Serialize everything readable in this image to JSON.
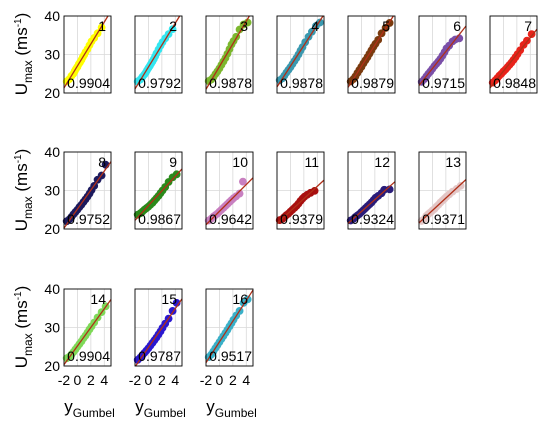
{
  "figure": {
    "ylabel": {
      "main": "U",
      "sub": "max",
      "unit_pre": "(ms",
      "unit_sup": "-1",
      "unit_post": ")"
    },
    "xlabel": {
      "main": "y",
      "sub": "Gumbel"
    },
    "y_ticks": [
      "20",
      "30",
      "40"
    ],
    "x_ticks": [
      "-2",
      "0",
      "2",
      "4"
    ]
  },
  "chart_data": {
    "type": "scatter",
    "xlim": [
      -2,
      5
    ],
    "ylim": [
      20,
      40
    ],
    "grid": true,
    "fit_line_color": "#b03018",
    "panels": [
      {
        "id": "1",
        "r2": "0.9904",
        "color": "#ffff00",
        "x": [
          -1.6,
          -1.2,
          -0.9,
          -0.6,
          -0.4,
          -0.2,
          0,
          0.2,
          0.4,
          0.6,
          0.8,
          1,
          1.2,
          1.5,
          1.8,
          2.1,
          2.5,
          3,
          3.6
        ],
        "y": [
          23,
          23.6,
          24.4,
          25,
          25.7,
          26.3,
          26.8,
          27.5,
          28,
          28.6,
          29.3,
          29.9,
          30.6,
          31.4,
          32.4,
          33.4,
          34.3,
          35.5,
          37
        ]
      },
      {
        "id": "2",
        "r2": "0.9792",
        "color": "#33e6f0",
        "x": [
          -1.6,
          -1.2,
          -0.9,
          -0.6,
          -0.4,
          -0.2,
          0,
          0.2,
          0.4,
          0.6,
          0.8,
          1,
          1.2,
          1.5,
          1.8,
          2.1,
          2.5,
          3,
          3.6
        ],
        "y": [
          23,
          23.5,
          24.2,
          24.8,
          25.3,
          25.9,
          26.5,
          27,
          27.6,
          28.2,
          28.8,
          29.5,
          30.3,
          31.3,
          32.3,
          33.2,
          34.2,
          35.3,
          36.6
        ]
      },
      {
        "id": "3",
        "r2": "0.9878",
        "color": "#7cb72e",
        "x": [
          -1.6,
          -1.2,
          -0.9,
          -0.6,
          -0.3,
          0,
          0.3,
          0.6,
          0.9,
          1.2,
          1.5,
          1.8,
          2.1,
          2.5,
          3,
          3.6,
          4.2
        ],
        "y": [
          23.1,
          23.5,
          24.1,
          24.9,
          25.6,
          26.4,
          27.3,
          28.2,
          29.1,
          30.2,
          31.4,
          32.6,
          33.5,
          34.6,
          36.5,
          37.8,
          38.3
        ]
      },
      {
        "id": "4",
        "r2": "0.9878",
        "color": "#3a99b0",
        "x": [
          -1.6,
          -1.2,
          -0.9,
          -0.6,
          -0.3,
          0,
          0.3,
          0.6,
          0.9,
          1.2,
          1.5,
          1.8,
          2.2,
          2.7,
          3.2,
          3.8,
          4.4
        ],
        "y": [
          23.3,
          23.8,
          24.5,
          25.3,
          26,
          26.7,
          27.5,
          28.3,
          29.1,
          30,
          31,
          31.9,
          33.2,
          34.6,
          35.9,
          37.4,
          38.3
        ]
      },
      {
        "id": "5",
        "r2": "0.9879",
        "color": "#7a3a0e",
        "x": [
          -1.6,
          -1.2,
          -0.9,
          -0.6,
          -0.3,
          0,
          0.3,
          0.6,
          0.9,
          1.2,
          1.5,
          1.8,
          2.1,
          2.5,
          3,
          3.6,
          4.2
        ],
        "y": [
          23,
          23.6,
          24.3,
          25.2,
          26,
          26.8,
          27.7,
          28.5,
          29.3,
          30.2,
          31.1,
          32,
          32.8,
          33.8,
          35.5,
          36.9,
          38.2
        ]
      },
      {
        "id": "6",
        "r2": "0.9715",
        "color": "#7a4fa8",
        "x": [
          -1.6,
          -1.2,
          -0.9,
          -0.6,
          -0.3,
          0,
          0.3,
          0.6,
          0.9,
          1.2,
          1.5,
          1.8,
          2.1,
          2.5,
          3,
          3.4,
          4
        ],
        "y": [
          22.9,
          23.6,
          24.3,
          25,
          25.6,
          26.3,
          27,
          27.6,
          28.2,
          28.9,
          29.7,
          30.6,
          31.6,
          32.3,
          33.4,
          33.9,
          34.2
        ]
      },
      {
        "id": "7",
        "r2": "0.9848",
        "color": "#e8231a",
        "x": [
          -1.6,
          -1.2,
          -0.9,
          -0.6,
          -0.3,
          0,
          0.3,
          0.6,
          0.9,
          1.2,
          1.5,
          1.8,
          2.1,
          2.5,
          3,
          3.5,
          4.2
        ],
        "y": [
          22.7,
          23.3,
          23.9,
          24.5,
          25,
          25.6,
          26.1,
          26.7,
          27.3,
          27.9,
          28.6,
          29.3,
          30.1,
          31.1,
          32.5,
          33.6,
          35.3
        ]
      },
      {
        "id": "8",
        "r2": "0.9752",
        "color": "#1c1a5e",
        "x": [
          -1.6,
          -1.2,
          -0.9,
          -0.6,
          -0.3,
          0,
          0.3,
          0.6,
          0.9,
          1.2,
          1.5,
          1.8,
          2.1,
          2.5,
          3,
          3.6,
          4.2
        ],
        "y": [
          22,
          22.5,
          23.1,
          23.8,
          24.4,
          25,
          25.7,
          26.3,
          27,
          27.7,
          28.4,
          29.2,
          30.1,
          31.2,
          32.8,
          33.9,
          36.7
        ]
      },
      {
        "id": "9",
        "r2": "0.9867",
        "color": "#2a8a1a",
        "x": [
          -1.6,
          -1.2,
          -0.9,
          -0.6,
          -0.3,
          0,
          0.3,
          0.6,
          0.9,
          1.2,
          1.5,
          1.8,
          2.1,
          2.5,
          3,
          3.6,
          4.2
        ],
        "y": [
          23.7,
          24.1,
          24.5,
          25,
          25.4,
          25.8,
          26.3,
          26.8,
          27.4,
          28,
          28.6,
          29.3,
          30,
          30.9,
          32.2,
          33.4,
          34.2
        ]
      },
      {
        "id": "10",
        "r2": "0.9642",
        "color": "#c87fc0",
        "x": [
          -1.6,
          -1.2,
          -0.9,
          -0.6,
          -0.3,
          0,
          0.3,
          0.6,
          0.9,
          1.2,
          1.5,
          1.8,
          2.1,
          2.5,
          3,
          3.5
        ],
        "y": [
          22.2,
          22.7,
          23.2,
          23.6,
          24,
          24.5,
          25,
          25.5,
          26,
          26.5,
          27,
          27.5,
          28,
          28.5,
          29.2,
          32.3
        ]
      },
      {
        "id": "11",
        "r2": "0.9379",
        "color": "#a81010",
        "x": [
          -1.6,
          -1.2,
          -0.9,
          -0.6,
          -0.3,
          0,
          0.3,
          0.6,
          0.9,
          1.2,
          1.5,
          1.8,
          2.1,
          2.5,
          3,
          3.6
        ],
        "y": [
          22.3,
          22.6,
          23.1,
          23.6,
          24,
          24.5,
          25,
          25.5,
          26,
          26.6,
          27.3,
          27.9,
          28.4,
          28.9,
          29.4,
          29.9
        ]
      },
      {
        "id": "12",
        "r2": "0.9324",
        "color": "#2a1c7a",
        "x": [
          -1.6,
          -1.2,
          -0.9,
          -0.6,
          -0.3,
          0,
          0.3,
          0.6,
          0.9,
          1.2,
          1.5,
          1.8,
          2.1,
          2.5,
          3,
          3.4,
          4.2
        ],
        "y": [
          22.2,
          22.6,
          23.1,
          23.5,
          23.9,
          24.4,
          24.9,
          25.4,
          25.9,
          26.4,
          26.9,
          27.5,
          28.1,
          28.6,
          29.3,
          30.2,
          30.3
        ]
      },
      {
        "id": "13",
        "r2": "0.9371",
        "color": "#e3c6c6",
        "x": [
          -1.6,
          -1.2,
          -0.9,
          -0.6,
          -0.3,
          0,
          0.3,
          0.6,
          0.9,
          1.2,
          1.5,
          1.8,
          2.1,
          2.5,
          3,
          3.6,
          4.2
        ],
        "y": [
          22.1,
          22.6,
          23.4,
          23.9,
          24.3,
          24.8,
          25.2,
          25.8,
          26.3,
          26.9,
          27.4,
          27.9,
          28.4,
          29,
          29.7,
          30.4,
          31.2
        ]
      },
      {
        "id": "14",
        "r2": "0.9904",
        "color": "#7ed957",
        "x": [
          -1.6,
          -1.2,
          -0.9,
          -0.6,
          -0.3,
          0,
          0.3,
          0.6,
          0.9,
          1.2,
          1.5,
          1.8,
          2.1,
          2.5,
          3,
          3.6,
          4.2
        ],
        "y": [
          22,
          22.4,
          23,
          23.6,
          24.3,
          25,
          25.7,
          26.4,
          27.2,
          27.9,
          28.7,
          29.5,
          30.3,
          31.3,
          32.6,
          34,
          35.5
        ]
      },
      {
        "id": "15",
        "r2": "0.9787",
        "color": "#2a18d0",
        "x": [
          -1.6,
          -1.2,
          -0.9,
          -0.6,
          -0.3,
          0,
          0.3,
          0.6,
          0.9,
          1.2,
          1.5,
          1.8,
          2.1,
          2.5,
          3,
          3.6,
          4.2
        ],
        "y": [
          21.6,
          22.2,
          22.8,
          23.4,
          24,
          24.6,
          25.3,
          26,
          26.7,
          27.4,
          28.2,
          29,
          29.9,
          31,
          32.3,
          34.3,
          36.4
        ]
      },
      {
        "id": "16",
        "r2": "0.9517",
        "color": "#3ab0c8",
        "x": [
          -1.6,
          -1.2,
          -0.9,
          -0.6,
          -0.3,
          0,
          0.3,
          0.6,
          0.9,
          1.2,
          1.5,
          1.8,
          2.1,
          2.5,
          3,
          3.6,
          4.2
        ],
        "y": [
          22.3,
          23,
          23.8,
          24.6,
          25.4,
          26.2,
          27,
          27.8,
          28.6,
          29.4,
          30.3,
          31.1,
          32,
          33.1,
          34.3,
          36.4,
          37.3
        ]
      }
    ]
  }
}
